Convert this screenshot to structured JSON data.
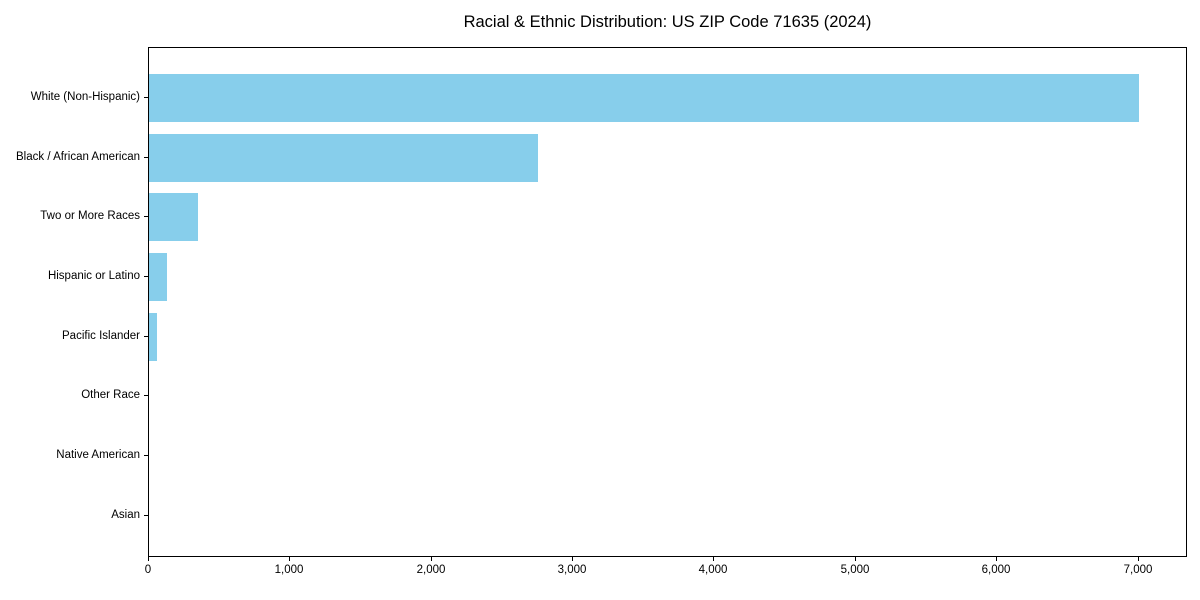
{
  "title": "Racial & Ethnic Distribution: US ZIP Code 71635 (2024)",
  "chart_data": {
    "type": "bar",
    "orientation": "horizontal",
    "title": "Racial & Ethnic Distribution: US ZIP Code 71635 (2024)",
    "xlabel": "",
    "ylabel": "",
    "categories": [
      "White (Non-Hispanic)",
      "Black / African American",
      "Two or More Races",
      "Hispanic or Latino",
      "Pacific Islander",
      "Other Race",
      "Native American",
      "Asian"
    ],
    "values": [
      7000,
      2750,
      350,
      130,
      60,
      0,
      0,
      0
    ],
    "xlim": [
      0,
      7350
    ],
    "x_ticks": [
      0,
      1000,
      2000,
      3000,
      4000,
      5000,
      6000,
      7000
    ],
    "x_tick_labels": [
      "0",
      "1,000",
      "2,000",
      "3,000",
      "4,000",
      "5,000",
      "6,000",
      "7,000"
    ],
    "grid": false,
    "legend": false,
    "bar_color": "#87CEEB"
  },
  "colors": {
    "bar": "#87CEEB",
    "axis": "#000000",
    "text": "#000000",
    "background": "#ffffff"
  }
}
